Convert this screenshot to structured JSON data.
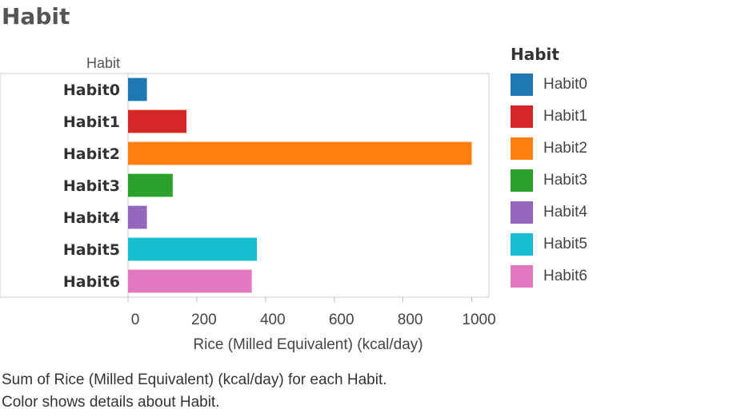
{
  "page": {
    "title": "Habit",
    "caption_line1": "Sum of Rice (Milled Equivalent) (kcal/day) for each Habit.",
    "caption_line2": "Color shows details about Habit."
  },
  "legend": {
    "title": "Habit"
  },
  "chart_data": {
    "type": "bar",
    "orientation": "horizontal",
    "y_header": "Habit",
    "categories": [
      "Habit0",
      "Habit1",
      "Habit2",
      "Habit3",
      "Habit4",
      "Habit5",
      "Habit6"
    ],
    "values": [
      55,
      170,
      1000,
      130,
      55,
      375,
      360
    ],
    "colors": [
      "#1f77b4",
      "#d62728",
      "#ff7f0e",
      "#2ca02c",
      "#9467bd",
      "#17becf",
      "#e377c2"
    ],
    "xlabel": "Rice (Milled Equivalent) (kcal/day)",
    "xlim": [
      0,
      1050
    ],
    "xticks": [
      0,
      200,
      400,
      600,
      800,
      1000
    ],
    "grid": false,
    "legend_position": "right"
  }
}
